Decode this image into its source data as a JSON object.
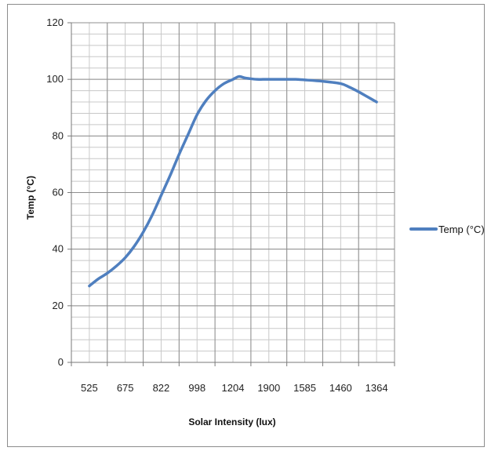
{
  "chart_data": {
    "type": "line",
    "xlabel": "Solar Intensity (lux)",
    "ylabel": "Temp  (°C)",
    "categories": [
      "525",
      "675",
      "822",
      "998",
      "1204",
      "1900",
      "1585",
      "1460",
      "1364"
    ],
    "ylim": [
      0,
      120
    ],
    "yticks": [
      0,
      20,
      40,
      60,
      80,
      100,
      120
    ],
    "grid": true,
    "legend_position": "right",
    "series": [
      {
        "name": "Temp  (°C)",
        "color": "#4f7fbf",
        "x": [
          525,
          565,
          600,
          645,
          675,
          715,
          750,
          790,
          822,
          860,
          900,
          940,
          998,
          1050,
          1100,
          1150,
          1204,
          1300,
          1400,
          1500,
          1650,
          1800,
          1900,
          1780,
          1700,
          1630,
          1585,
          1520,
          1460,
          1420,
          1395,
          1380,
          1364
        ],
        "values": [
          27,
          29.5,
          31.5,
          34,
          37,
          41,
          46,
          52,
          59,
          66,
          73.5,
          80.5,
          87.5,
          92.5,
          96,
          98.5,
          100,
          101,
          100.5,
          100.2,
          100,
          100,
          100,
          100,
          100,
          100,
          99.8,
          99.3,
          98.5,
          97.2,
          95.6,
          93.8,
          92
        ]
      }
    ]
  }
}
